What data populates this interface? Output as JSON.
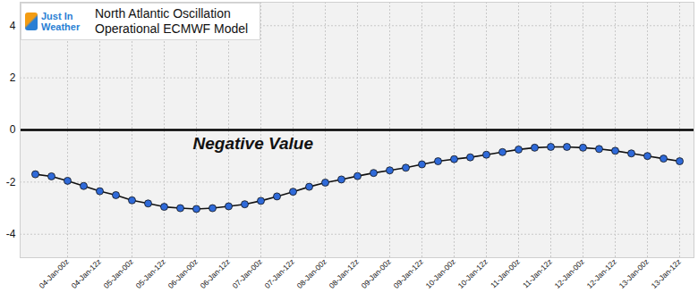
{
  "chart_data": {
    "type": "line",
    "title": "North Atlantic Oscillation",
    "subtitle": "Operational ECMWF Model",
    "credit": "Just In Weather",
    "annotations": [
      "Negative Value"
    ],
    "categories": [
      null,
      null,
      "04-Jan-00z",
      null,
      "04-Jan-12z",
      null,
      "05-Jan-00z",
      null,
      "05-Jan-12z",
      null,
      "06-Jan-00z",
      null,
      "06-Jan-12z",
      null,
      "07-Jan-00z",
      null,
      "07-Jan-12z",
      null,
      "08-Jan-00z",
      null,
      "08-Jan-12z",
      null,
      "09-Jan-00z",
      null,
      "09-Jan-12z",
      null,
      "10-Jan-00z",
      null,
      "10-Jan-12z",
      null,
      "11-Jan-00z",
      null,
      "11-Jan-12z",
      null,
      "12-Jan-00z",
      null,
      "12-Jan-12z",
      null,
      "13-Jan-00z",
      null,
      "13-Jan-12z"
    ],
    "series": [
      {
        "name": "North Atlantic Oscillation",
        "color": "#2f6ad9",
        "marker": "circle",
        "line_style": "solid",
        "values": [
          -1.7,
          -1.78,
          -1.95,
          -2.15,
          -2.35,
          -2.5,
          -2.7,
          -2.82,
          -2.95,
          -3.0,
          -3.03,
          -3.0,
          -2.93,
          -2.85,
          -2.72,
          -2.55,
          -2.37,
          -2.18,
          -2.02,
          -1.9,
          -1.77,
          -1.65,
          -1.55,
          -1.45,
          -1.32,
          -1.2,
          -1.12,
          -1.05,
          -0.95,
          -0.85,
          -0.75,
          -0.68,
          -0.65,
          -0.65,
          -0.68,
          -0.73,
          -0.8,
          -0.9,
          -1.0,
          -1.1,
          -1.2
        ]
      }
    ],
    "ylim": [
      -4.9,
      4.9
    ],
    "yticks": [
      -4,
      -2,
      0,
      2,
      4
    ],
    "grid": true
  }
}
